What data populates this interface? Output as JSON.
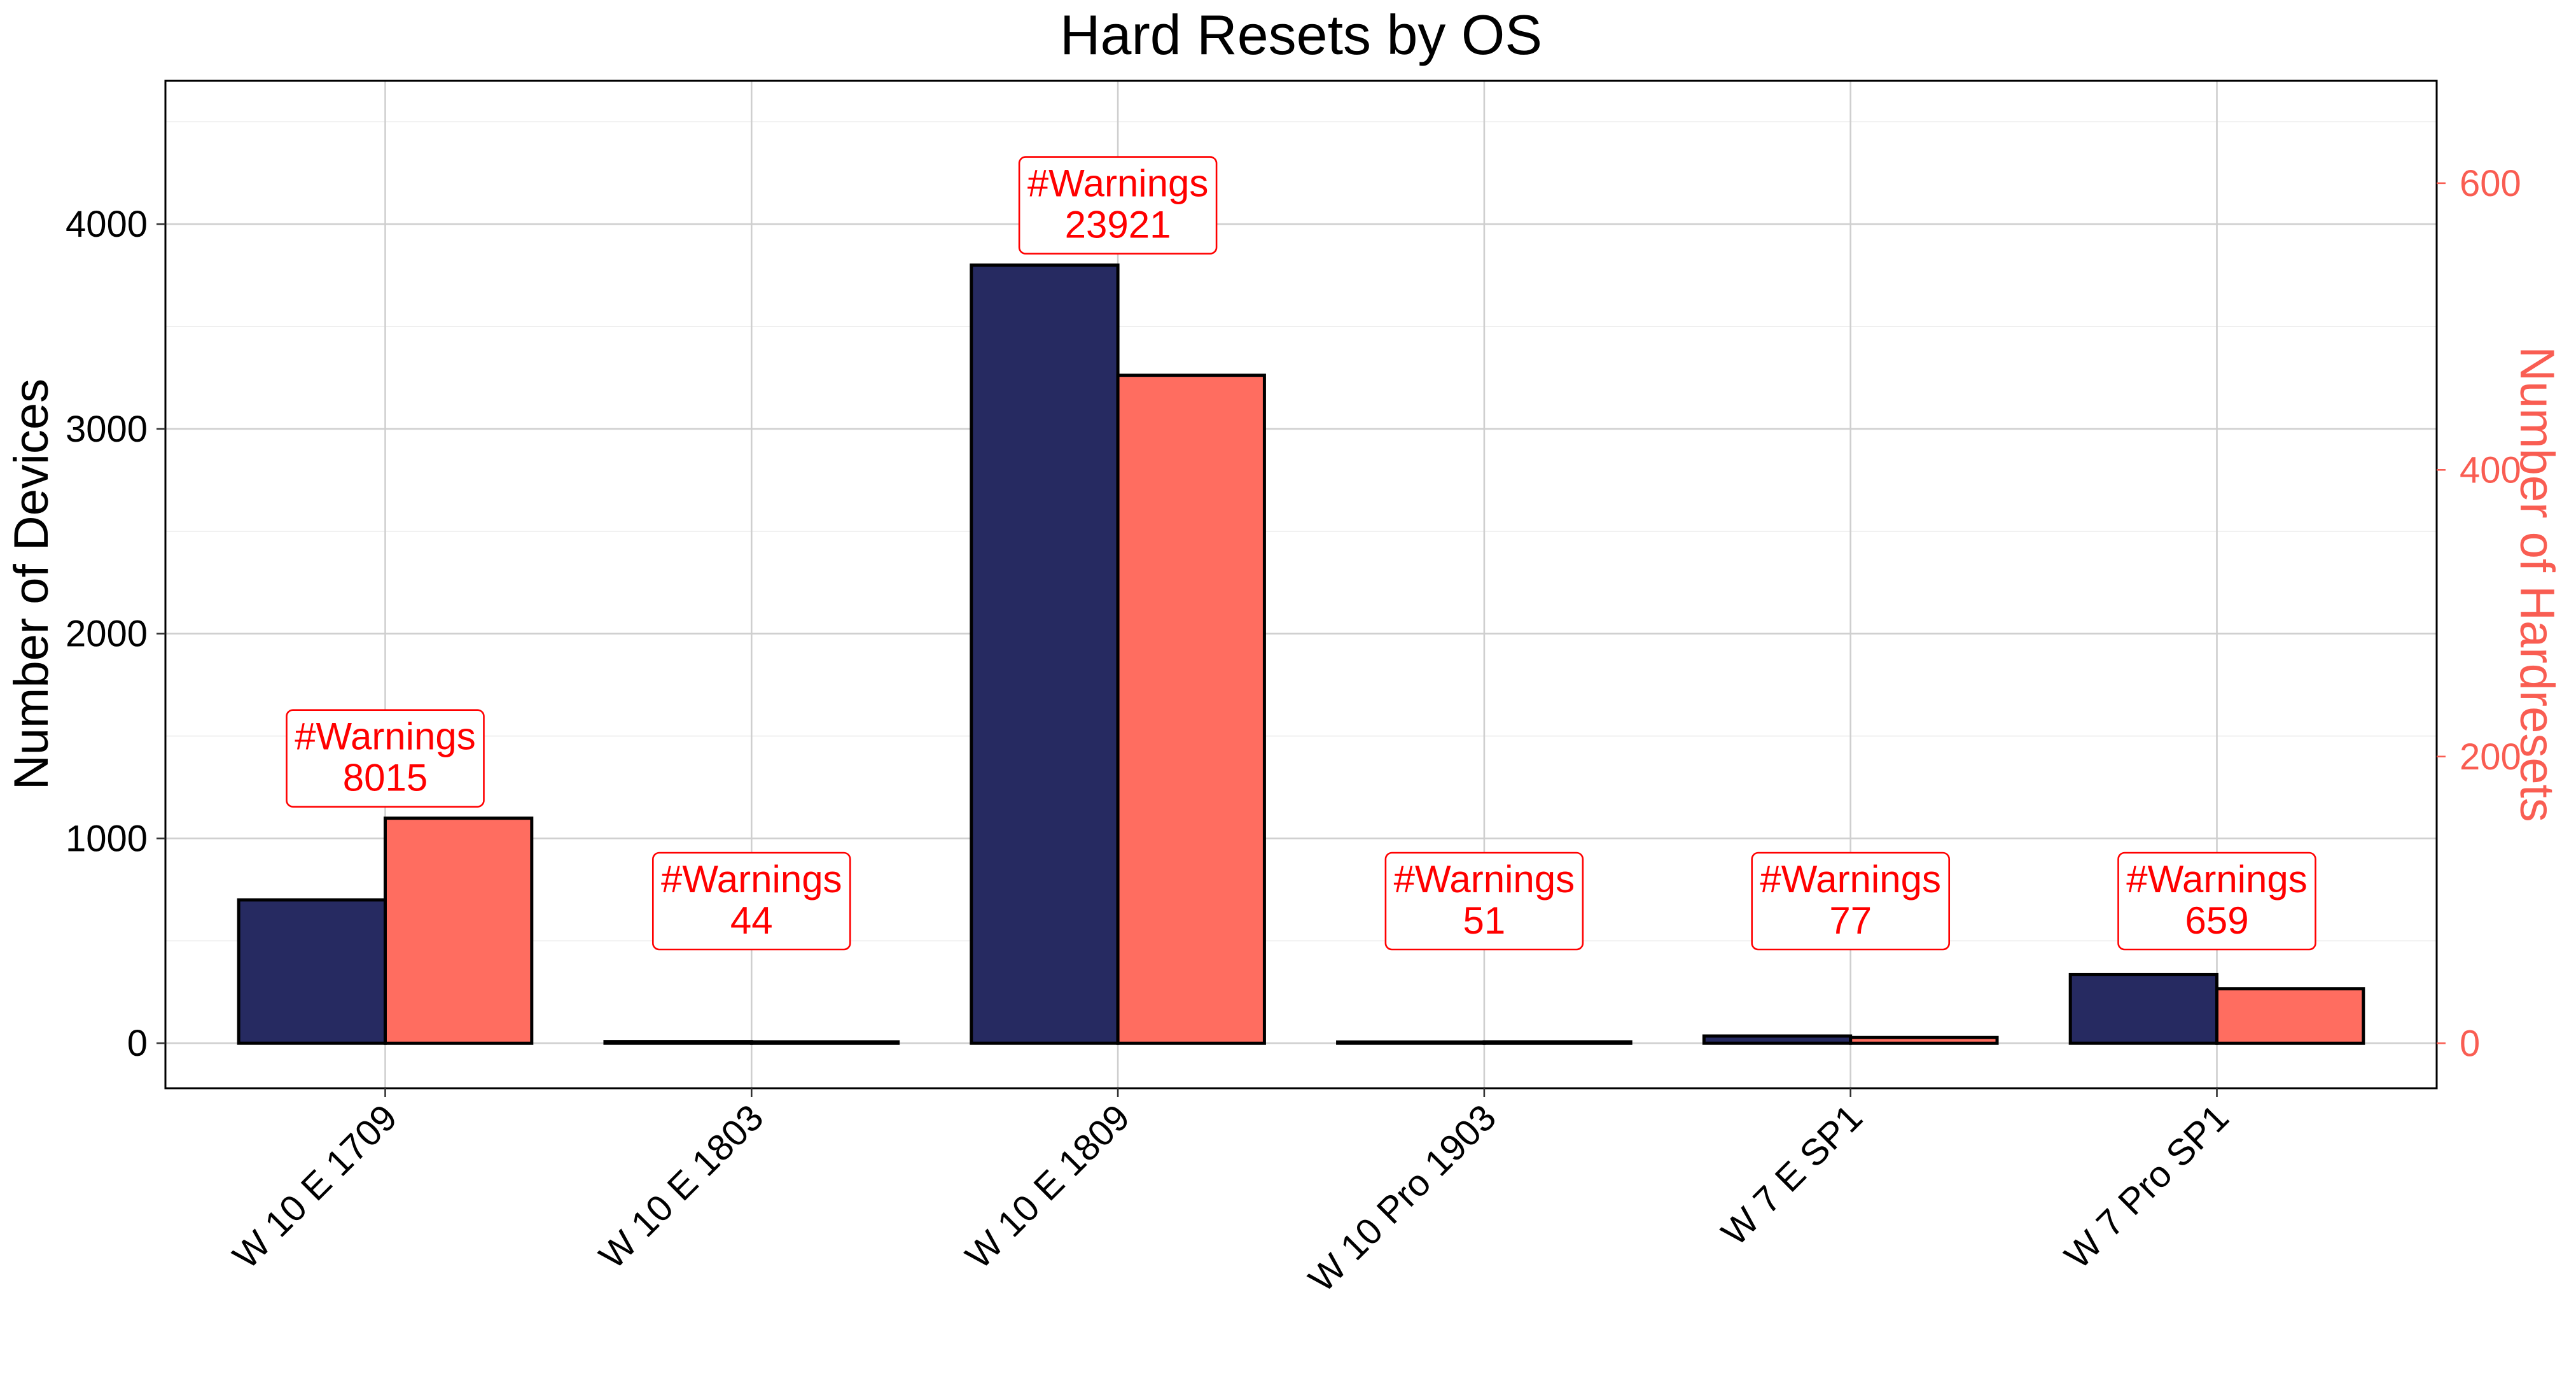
{
  "chart_data": {
    "type": "bar",
    "title": "Hard Resets by OS",
    "xlabel": "",
    "ylabel": "Number of Devices",
    "ylabel_right": "Number of Hardresets",
    "categories": [
      "W 10 E 1709",
      "W 10 E 1803",
      "W 10 E 1809",
      "W 10 Pro 1903",
      "W 7 E SP1",
      "W 7 Pro SP1"
    ],
    "series": [
      {
        "axis": "left",
        "color": "#262a61",
        "values": [
          700,
          8,
          3800,
          6,
          35,
          335
        ]
      },
      {
        "axis": "right",
        "color": "#ff6d60",
        "values": [
          157,
          1,
          466,
          1,
          4,
          38
        ]
      }
    ],
    "annotations": {
      "prefix": "#Warnings",
      "values": [
        "8015",
        "44",
        "23921",
        "51",
        "77",
        "659"
      ]
    },
    "ylim": [
      -220,
      4700
    ],
    "ylim_right": [
      -31.4,
      671.4
    ],
    "yticks": [
      0,
      1000,
      2000,
      3000,
      4000
    ],
    "yticks_right": [
      0,
      200,
      400,
      600
    ],
    "grid": true,
    "colors": {
      "devices": "#262a61",
      "hardresets": "#ff6d60",
      "right_axis": "#f95d52",
      "annotation": "#ff0000"
    }
  }
}
